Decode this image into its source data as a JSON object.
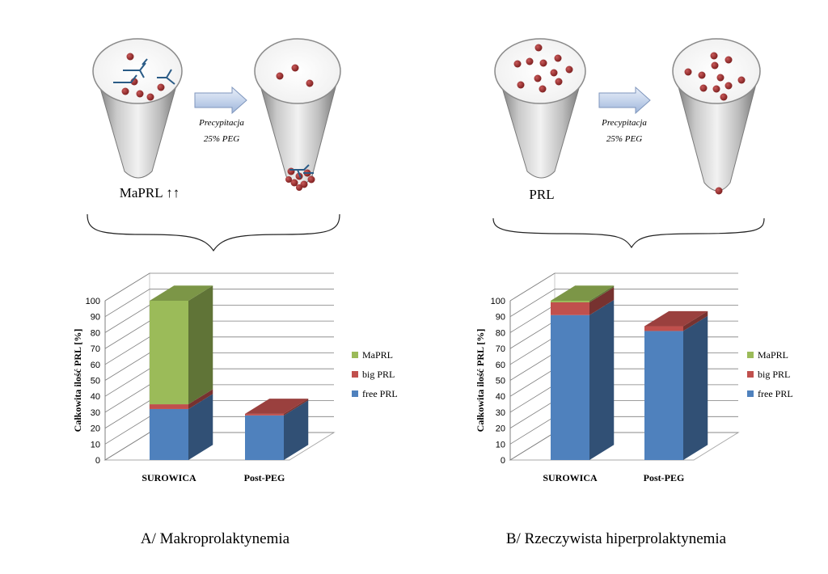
{
  "panels": [
    {
      "key": "A",
      "caption": "A/ Makroprolaktynemia",
      "tube_label": "MaPRL ↑↑",
      "arrow_text": [
        "Precypitacja",
        "25% PEG"
      ],
      "chart_data": {
        "type": "bar",
        "stacked": true,
        "categories": [
          "SUROWICA",
          "Post-PEG"
        ],
        "series": [
          {
            "name": "free PRL",
            "values": [
              32,
              28
            ]
          },
          {
            "name": "big PRL",
            "values": [
              3,
              1
            ]
          },
          {
            "name": "MaPRL",
            "values": [
              65,
              0
            ]
          }
        ],
        "ylabel": "Całkowita ilość PRL [%]",
        "ylim": [
          0,
          100
        ],
        "yticks": [
          0,
          10,
          20,
          30,
          40,
          50,
          60,
          70,
          80,
          90,
          100
        ],
        "grid": true,
        "legend": "right",
        "colors": {
          "free PRL": "#4f81bd",
          "big PRL": "#c0504d",
          "MaPRL": "#9bbb59"
        }
      }
    },
    {
      "key": "B",
      "caption": "B/ Rzeczywista hiperprolaktynemia",
      "tube_label": "PRL",
      "arrow_text": [
        "Precypitacja",
        "25% PEG"
      ],
      "chart_data": {
        "type": "bar",
        "stacked": true,
        "categories": [
          "SUROWICA",
          "Post-PEG"
        ],
        "series": [
          {
            "name": "free PRL",
            "values": [
              91,
              81
            ]
          },
          {
            "name": "big PRL",
            "values": [
              8,
              3
            ]
          },
          {
            "name": "MaPRL",
            "values": [
              1,
              0
            ]
          }
        ],
        "ylabel": "Całkowita ilość PRL [%]",
        "ylim": [
          0,
          100
        ],
        "yticks": [
          0,
          10,
          20,
          30,
          40,
          50,
          60,
          70,
          80,
          90,
          100
        ],
        "grid": true,
        "legend": "right",
        "colors": {
          "free PRL": "#4f81bd",
          "big PRL": "#c0504d",
          "MaPRL": "#9bbb59"
        }
      }
    }
  ],
  "icons": [
    "test-tube-icon",
    "right-arrow-icon",
    "curly-brace-icon",
    "antibody-icon",
    "prolactin-dot-icon"
  ]
}
